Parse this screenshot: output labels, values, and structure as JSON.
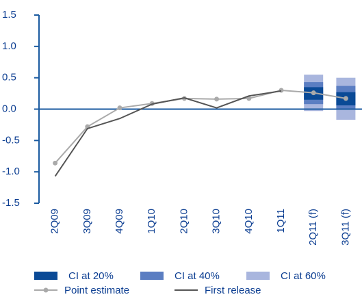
{
  "chart_data": {
    "type": "line",
    "categories": [
      "2Q09",
      "3Q09",
      "4Q09",
      "1Q10",
      "2Q10",
      "3Q10",
      "4Q10",
      "1Q11",
      "2Q11 (f)",
      "3Q11 (f)"
    ],
    "ylim": [
      -1.5,
      1.5
    ],
    "yticks": [
      1.5,
      {
        "value": 1.0,
        "label": "1.0"
      },
      0.5,
      {
        "value": 0.0,
        "label": "0.0"
      },
      -0.5,
      {
        "value": -1.0,
        "label": "-1.0"
      },
      -1.5
    ],
    "intervals": [
      {
        "name": "CI at 60%",
        "color": "#a9b6de",
        "low": [
          null,
          null,
          null,
          null,
          null,
          null,
          null,
          null,
          -0.03,
          -0.17
        ],
        "high": [
          null,
          null,
          null,
          null,
          null,
          null,
          null,
          null,
          0.55,
          0.5
        ]
      },
      {
        "name": "CI at 40%",
        "color": "#5b7ec2",
        "low": [
          null,
          null,
          null,
          null,
          null,
          null,
          null,
          null,
          0.08,
          0.0
        ],
        "high": [
          null,
          null,
          null,
          null,
          null,
          null,
          null,
          null,
          0.43,
          0.37
        ]
      },
      {
        "name": "CI at 20%",
        "color": "#0a4a96",
        "low": [
          null,
          null,
          null,
          null,
          null,
          null,
          null,
          null,
          0.15,
          0.06
        ],
        "high": [
          null,
          null,
          null,
          null,
          null,
          null,
          null,
          null,
          0.35,
          0.27
        ]
      }
    ],
    "series": [
      {
        "name": "Point estimate",
        "color": "#aaaaaa",
        "values": [
          -0.86,
          -0.28,
          0.02,
          0.09,
          0.17,
          0.16,
          0.17,
          0.3,
          0.26,
          0.17
        ]
      },
      {
        "name": "First release",
        "color": "#555555",
        "values": [
          -1.07,
          -0.31,
          -0.15,
          0.08,
          0.18,
          0.02,
          0.21,
          0.29,
          null,
          null
        ]
      }
    ]
  }
}
